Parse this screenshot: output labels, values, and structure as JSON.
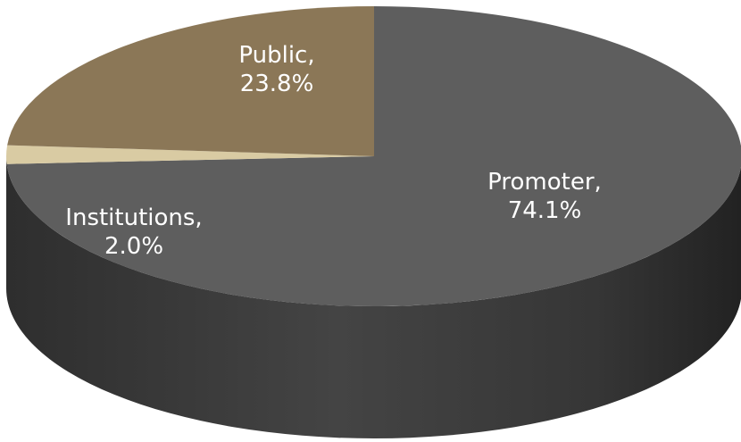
{
  "chart_data": {
    "type": "pie",
    "style": "3d",
    "slices": [
      {
        "category": "Promoter",
        "label_line1": "Promoter,",
        "label_line2": "74.1%",
        "value": 74.1,
        "color": "#5e5e5e",
        "label_color": "#ffffff"
      },
      {
        "category": "Institutions",
        "label_line1": "Institutions,",
        "label_line2": "2.0%",
        "value": 2.0,
        "color": "#d9cba3",
        "label_color": "#ffffff"
      },
      {
        "category": "Public",
        "label_line1": "Public,",
        "label_line2": "23.8%",
        "value": 23.8,
        "color": "#8b7757",
        "label_color": "#ffffff"
      }
    ]
  }
}
